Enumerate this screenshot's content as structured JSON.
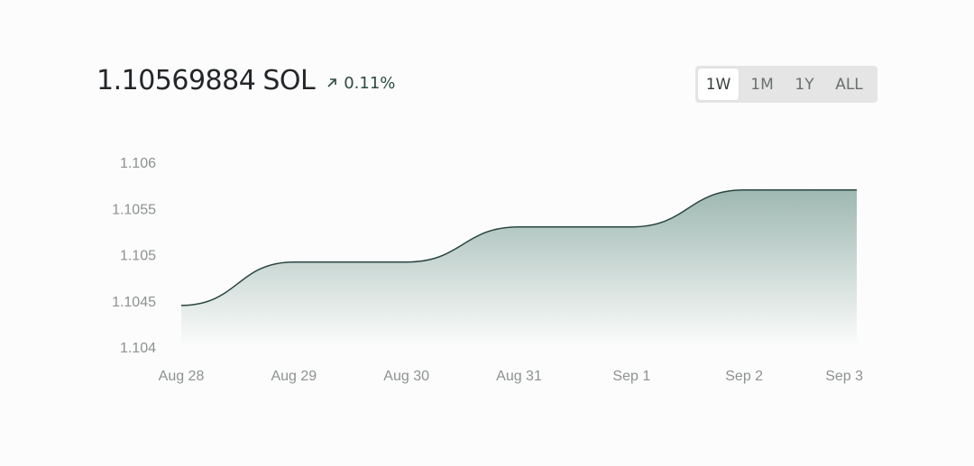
{
  "header": {
    "balance_value": "1.10569884",
    "balance_unit": "SOL",
    "change_icon": "arrow-up-right-icon",
    "change_value": "0.11%",
    "change_color": "#2c4a43"
  },
  "range_selector": {
    "options": [
      "1W",
      "1M",
      "1Y",
      "ALL"
    ],
    "selected": "1W"
  },
  "chart_data": {
    "type": "area",
    "x": [
      "Aug 28",
      "Aug 29",
      "Aug 30",
      "Aug 31",
      "Sep 1",
      "Sep 2",
      "Sep 3"
    ],
    "values": [
      1.10445,
      1.10492,
      1.10492,
      1.1053,
      1.1053,
      1.1057,
      1.1057
    ],
    "yticks": [
      "1.106",
      "1.1055",
      "1.105",
      "1.1045",
      "1.104"
    ],
    "ylim": [
      1.104,
      1.106
    ],
    "grid": false,
    "line_color": "#2a4540",
    "fill_color": "#9eb8b1"
  }
}
